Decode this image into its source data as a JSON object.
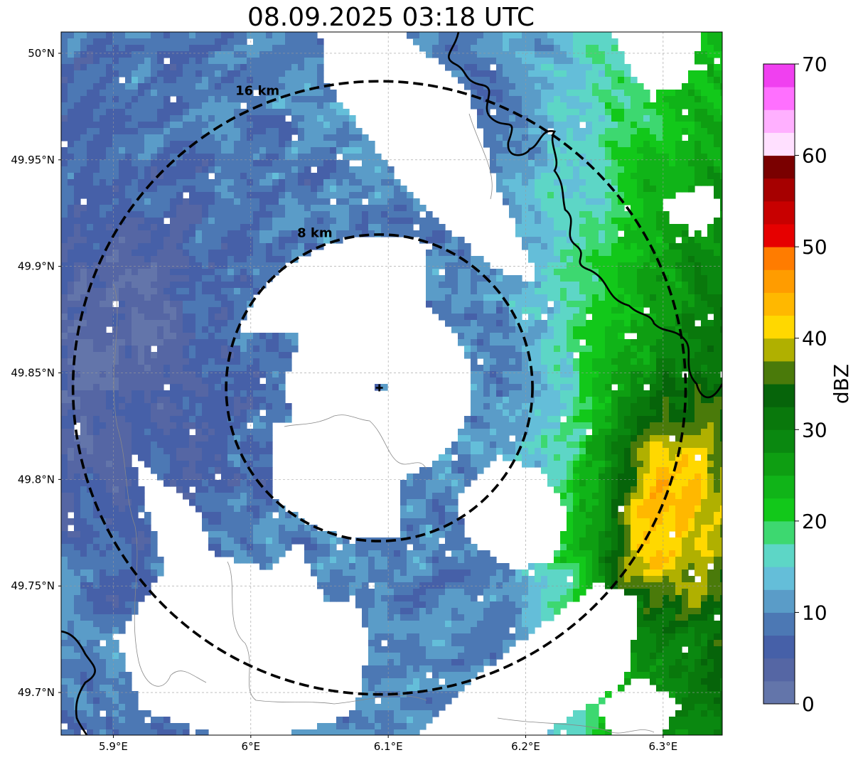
{
  "title": "08.09.2025 03:18 UTC",
  "map": {
    "lon_range": [
      5.862,
      6.343
    ],
    "lat_range": [
      49.68,
      50.01
    ],
    "radar_site": {
      "lon": 6.0935,
      "lat": 49.843
    },
    "lon_ticks": [
      {
        "value": 5.9,
        "label": "5.9°E"
      },
      {
        "value": 6.0,
        "label": "6°E"
      },
      {
        "value": 6.1,
        "label": "6.1°E"
      },
      {
        "value": 6.2,
        "label": "6.2°E"
      },
      {
        "value": 6.3,
        "label": "6.3°E"
      }
    ],
    "lat_ticks": [
      {
        "value": 50.0,
        "label": "50°N"
      },
      {
        "value": 49.95,
        "label": "49.95°N"
      },
      {
        "value": 49.9,
        "label": "49.9°N"
      },
      {
        "value": 49.85,
        "label": "49.85°N"
      },
      {
        "value": 49.8,
        "label": "49.8°N"
      },
      {
        "value": 49.75,
        "label": "49.75°N"
      },
      {
        "value": 49.7,
        "label": "49.7°N"
      }
    ],
    "range_rings": [
      {
        "radius_km": 8,
        "label": "8 km"
      },
      {
        "radius_km": 16,
        "label": "16 km"
      }
    ],
    "grid": true
  },
  "colorbar": {
    "label": "dBZ",
    "min": 0,
    "max": 70,
    "tick_labels": [
      "0",
      "10",
      "20",
      "30",
      "40",
      "50",
      "60",
      "70"
    ],
    "colors": [
      "#6375aa",
      "#5566a4",
      "#4660a8",
      "#4c78b4",
      "#5a9cc8",
      "#64bed9",
      "#5dd6c6",
      "#3dd870",
      "#12c81a",
      "#10b418",
      "#0e9e12",
      "#0a8810",
      "#09780c",
      "#06640a",
      "#4a7a0a",
      "#b0b000",
      "#ffd800",
      "#ffb800",
      "#ff9c00",
      "#ff7c00",
      "#e60000",
      "#c80000",
      "#a60000",
      "#7a0000",
      "#ffe0ff",
      "#ffb0ff",
      "#ff70ff",
      "#f040f0"
    ]
  }
}
